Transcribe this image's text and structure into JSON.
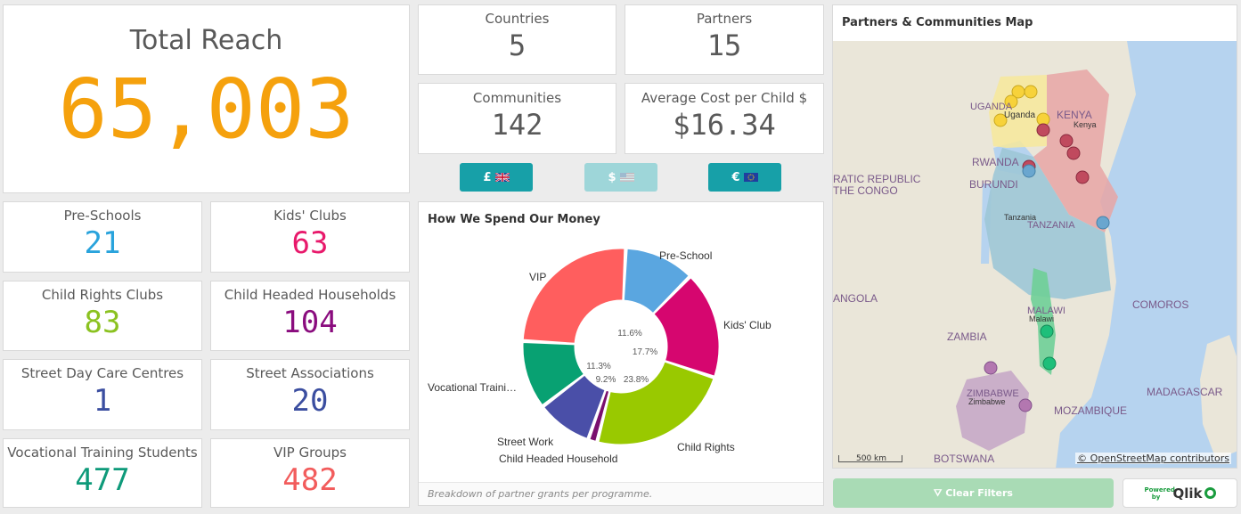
{
  "total_reach": {
    "label": "Total Reach",
    "value": "65,003"
  },
  "kpis_top": [
    {
      "label": "Countries",
      "value": "5"
    },
    {
      "label": "Partners",
      "value": "15"
    },
    {
      "label": "Communities",
      "value": "142"
    },
    {
      "label": "Average Cost per Child $",
      "value": "$16.34"
    }
  ],
  "kpis_grid": [
    {
      "label": "Pre-Schools",
      "value": "21",
      "color": "#29a3dc"
    },
    {
      "label": "Kids' Clubs",
      "value": "63",
      "color": "#e8196b"
    },
    {
      "label": "Child Rights Clubs",
      "value": "83",
      "color": "#8bc220"
    },
    {
      "label": "Child Headed Households",
      "value": "104",
      "color": "#8a0c7e"
    },
    {
      "label": "Street Day Care Centres",
      "value": "1",
      "color": "#3b4ea0"
    },
    {
      "label": "Street Associations",
      "value": "20",
      "color": "#3b4ea0"
    },
    {
      "label": "Vocational Training Students",
      "value": "477",
      "color": "#0e9a7a"
    },
    {
      "label": "VIP Groups",
      "value": "482",
      "color": "#f25c5c"
    }
  ],
  "currency_buttons": [
    {
      "symbol": "£",
      "flag": "uk-flag-icon",
      "active": true
    },
    {
      "symbol": "$",
      "flag": "us-flag-icon",
      "active": false
    },
    {
      "symbol": "€",
      "flag": "eu-flag-icon",
      "active": true
    }
  ],
  "colors": {
    "accent_orange": "#f5a10d",
    "button_teal": "#17a0a8",
    "button_teal_disabled": "#9ed6d9"
  },
  "spend_chart": {
    "title": "How We Spend Our Money",
    "footnote": "Breakdown of partner grants per programme."
  },
  "chart_data": {
    "type": "pie",
    "title": "How We Spend Our Money",
    "categories": [
      "Pre-School",
      "Kids' Club",
      "Child Rights",
      "Child Headed Household",
      "Street Work",
      "Vocational Traini…",
      "VIP"
    ],
    "values": [
      11.6,
      17.7,
      23.8,
      1.5,
      9.2,
      11.3,
      24.9
    ],
    "data_labels": [
      "11.6%",
      "17.7%",
      "23.8%",
      "",
      "9.2%",
      "11.3%",
      ""
    ],
    "colors": [
      "#5aa6e0",
      "#d6066f",
      "#99c900",
      "#7a0f6e",
      "#4a4fa8",
      "#08a172",
      "#ff5e5e"
    ],
    "legend": "none"
  },
  "map": {
    "title": "Partners & Communities Map",
    "labels": [
      "UGANDA",
      "Uganda",
      "KENYA",
      "Kenya",
      "RWANDA",
      "BURUNDI",
      "RATIC REPUBLIC",
      "THE CONGO",
      "Tanzania",
      "TANZANIA",
      "ANGOLA",
      "MALAWI",
      "Malawi",
      "COMOROS",
      "ZAMBIA",
      "MADAGASCAR",
      "ZIMBABWE",
      "Zimbabwe",
      "MOZAMBIQUE",
      "BOTSWANA"
    ],
    "scale": "500 km",
    "attribution": "© OpenStreetMap contributors"
  },
  "clear_filters": {
    "label": "Clear Filters"
  },
  "qlik_badge": {
    "powered": "Powered by",
    "brand": "Qlik"
  }
}
